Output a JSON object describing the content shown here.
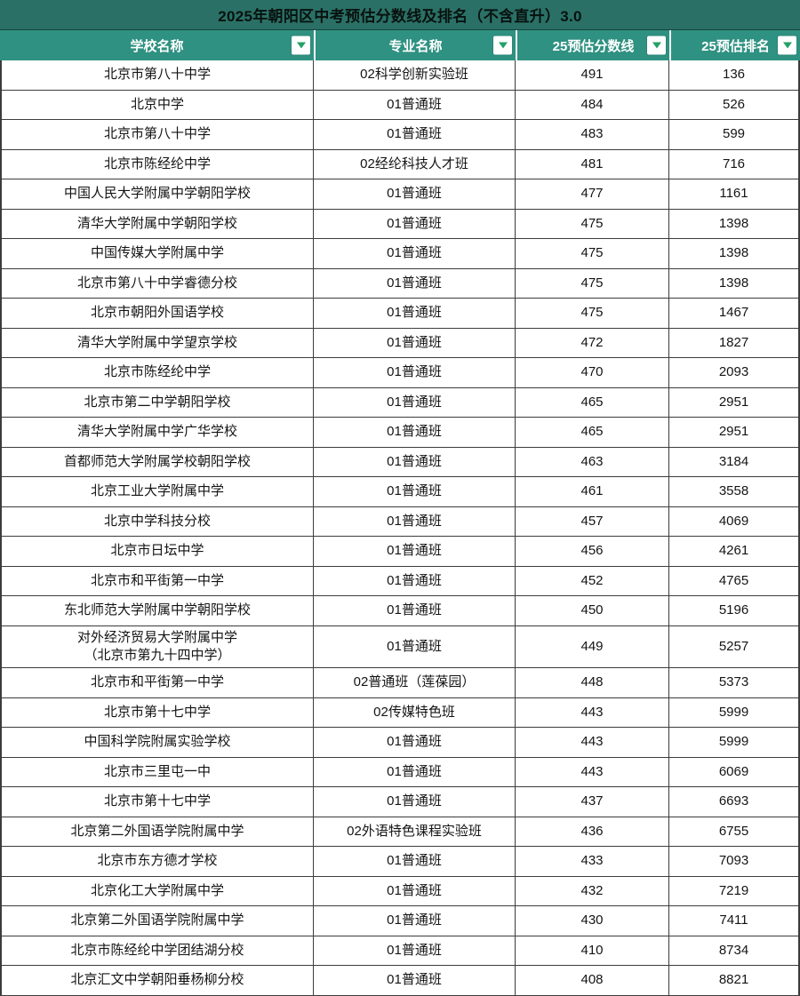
{
  "title": "2025年朝阳区中考预估分数线及排名（不含直升）3.0",
  "table": {
    "columns": [
      {
        "label": "学校名称"
      },
      {
        "label": "专业名称"
      },
      {
        "label": "25预估分数线"
      },
      {
        "label": "25预估排名"
      }
    ],
    "rows": [
      {
        "school": "北京市第八十中学",
        "program": "02科学创新实验班",
        "score": 491,
        "rank": 136
      },
      {
        "school": "北京中学",
        "program": "01普通班",
        "score": 484,
        "rank": 526
      },
      {
        "school": "北京市第八十中学",
        "program": "01普通班",
        "score": 483,
        "rank": 599
      },
      {
        "school": "北京市陈经纶中学",
        "program": "02经纶科技人才班",
        "score": 481,
        "rank": 716
      },
      {
        "school": "中国人民大学附属中学朝阳学校",
        "program": "01普通班",
        "score": 477,
        "rank": 1161
      },
      {
        "school": "清华大学附属中学朝阳学校",
        "program": "01普通班",
        "score": 475,
        "rank": 1398
      },
      {
        "school": "中国传媒大学附属中学",
        "program": "01普通班",
        "score": 475,
        "rank": 1398
      },
      {
        "school": "北京市第八十中学睿德分校",
        "program": "01普通班",
        "score": 475,
        "rank": 1398
      },
      {
        "school": "北京市朝阳外国语学校",
        "program": "01普通班",
        "score": 475,
        "rank": 1467
      },
      {
        "school": "清华大学附属中学望京学校",
        "program": "01普通班",
        "score": 472,
        "rank": 1827
      },
      {
        "school": "北京市陈经纶中学",
        "program": "01普通班",
        "score": 470,
        "rank": 2093
      },
      {
        "school": "北京市第二中学朝阳学校",
        "program": "01普通班",
        "score": 465,
        "rank": 2951
      },
      {
        "school": "清华大学附属中学广华学校",
        "program": "01普通班",
        "score": 465,
        "rank": 2951
      },
      {
        "school": "首都师范大学附属学校朝阳学校",
        "program": "01普通班",
        "score": 463,
        "rank": 3184
      },
      {
        "school": "北京工业大学附属中学",
        "program": "01普通班",
        "score": 461,
        "rank": 3558
      },
      {
        "school": "北京中学科技分校",
        "program": "01普通班",
        "score": 457,
        "rank": 4069
      },
      {
        "school": "北京市日坛中学",
        "program": "01普通班",
        "score": 456,
        "rank": 4261
      },
      {
        "school": "北京市和平街第一中学",
        "program": "01普通班",
        "score": 452,
        "rank": 4765
      },
      {
        "school": "东北师范大学附属中学朝阳学校",
        "program": "01普通班",
        "score": 450,
        "rank": 5196
      },
      {
        "school": "对外经济贸易大学附属中学\n（北京市第九十四中学）",
        "program": "01普通班",
        "score": 449,
        "rank": 5257
      },
      {
        "school": "北京市和平街第一中学",
        "program": "02普通班（莲葆园）",
        "score": 448,
        "rank": 5373
      },
      {
        "school": "北京市第十七中学",
        "program": "02传媒特色班",
        "score": 443,
        "rank": 5999
      },
      {
        "school": "中国科学院附属实验学校",
        "program": "01普通班",
        "score": 443,
        "rank": 5999
      },
      {
        "school": "北京市三里屯一中",
        "program": "01普通班",
        "score": 443,
        "rank": 6069
      },
      {
        "school": "北京市第十七中学",
        "program": "01普通班",
        "score": 437,
        "rank": 6693
      },
      {
        "school": "北京第二外国语学院附属中学",
        "program": "02外语特色课程实验班",
        "score": 436,
        "rank": 6755
      },
      {
        "school": "北京市东方德才学校",
        "program": "01普通班",
        "score": 433,
        "rank": 7093
      },
      {
        "school": "北京化工大学附属中学",
        "program": "01普通班",
        "score": 432,
        "rank": 7219
      },
      {
        "school": "北京第二外国语学院附属中学",
        "program": "01普通班",
        "score": 430,
        "rank": 7411
      },
      {
        "school": "北京市陈经纶中学团结湖分校",
        "program": "01普通班",
        "score": 410,
        "rank": 8734
      },
      {
        "school": "北京汇文中学朝阳垂杨柳分校",
        "program": "01普通班",
        "score": 408,
        "rank": 8821
      }
    ]
  },
  "icons": {
    "filter": "filter-dropdown-triangle"
  },
  "colors": {
    "title_bar_bg": "#2a7066",
    "header_bg": "#2f9181",
    "grid_border": "#3c3c3c",
    "filter_triangle": "#23a167",
    "header_text": "#ffffff",
    "title_text": "#08120f",
    "body_text": "#141414"
  }
}
